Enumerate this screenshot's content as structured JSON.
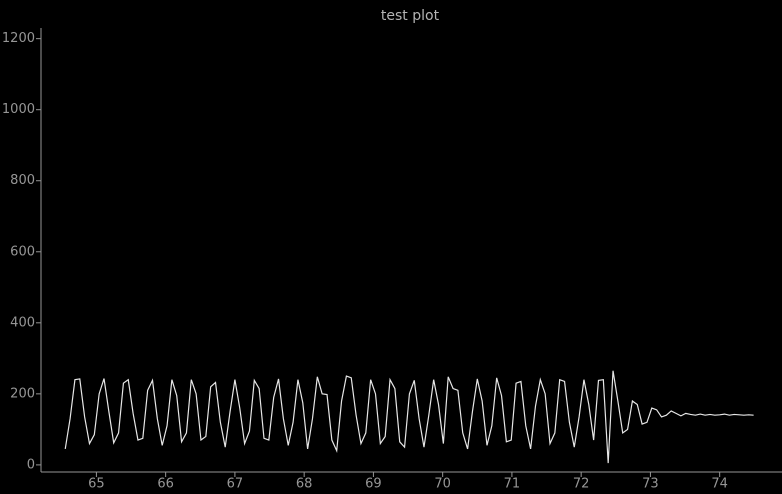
{
  "chart_data": {
    "type": "line",
    "title": "test plot",
    "x": [
      64.55,
      64.62,
      64.69,
      64.76,
      64.83,
      64.9,
      64.97,
      65.04,
      65.11,
      65.18,
      65.25,
      65.32,
      65.39,
      65.46,
      65.53,
      65.6,
      65.67,
      65.74,
      65.81,
      65.88,
      65.95,
      66.02,
      66.09,
      66.16,
      66.23,
      66.3,
      66.37,
      66.44,
      66.51,
      66.58,
      66.65,
      66.72,
      66.79,
      66.86,
      66.93,
      67.0,
      67.07,
      67.14,
      67.21,
      67.28,
      67.35,
      67.42,
      67.49,
      67.56,
      67.63,
      67.7,
      67.77,
      67.84,
      67.91,
      67.98,
      68.05,
      68.12,
      68.19,
      68.26,
      68.33,
      68.4,
      68.47,
      68.54,
      68.61,
      68.68,
      68.75,
      68.82,
      68.89,
      68.96,
      69.03,
      69.1,
      69.17,
      69.24,
      69.31,
      69.38,
      69.45,
      69.52,
      69.59,
      69.66,
      69.73,
      69.8,
      69.87,
      69.94,
      70.01,
      70.08,
      70.15,
      70.22,
      70.29,
      70.36,
      70.43,
      70.5,
      70.57,
      70.64,
      70.71,
      70.78,
      70.85,
      70.92,
      70.99,
      71.06,
      71.13,
      71.2,
      71.27,
      71.34,
      71.41,
      71.48,
      71.55,
      71.62,
      71.69,
      71.76,
      71.83,
      71.9,
      71.97,
      72.04,
      72.11,
      72.18,
      72.25,
      72.32,
      72.39,
      72.46,
      72.53,
      72.6,
      72.67,
      72.74,
      72.81,
      72.88,
      72.95,
      73.02,
      73.09,
      73.16,
      73.23,
      73.3,
      73.37,
      73.44,
      73.51,
      73.58,
      73.65,
      73.72,
      73.79,
      73.86,
      73.93,
      74.0,
      74.07,
      74.14,
      74.21,
      74.28,
      74.35,
      74.42,
      74.49
    ],
    "values": [
      45,
      130,
      240,
      242,
      135,
      60,
      85,
      200,
      243,
      150,
      62,
      90,
      230,
      240,
      145,
      70,
      75,
      210,
      238,
      130,
      55,
      110,
      240,
      195,
      65,
      90,
      240,
      200,
      70,
      80,
      220,
      232,
      120,
      50,
      150,
      240,
      160,
      60,
      95,
      238,
      215,
      75,
      70,
      190,
      242,
      130,
      55,
      120,
      240,
      175,
      45,
      130,
      248,
      200,
      198,
      70,
      40,
      180,
      250,
      245,
      140,
      60,
      90,
      240,
      200,
      60,
      80,
      240,
      215,
      65,
      50,
      200,
      238,
      130,
      50,
      140,
      240,
      170,
      60,
      248,
      215,
      210,
      90,
      45,
      150,
      242,
      180,
      55,
      110,
      245,
      195,
      65,
      70,
      230,
      235,
      110,
      45,
      165,
      240,
      200,
      60,
      90,
      240,
      235,
      120,
      50,
      135,
      240,
      170,
      70,
      238,
      240,
      5,
      265,
      180,
      90,
      100,
      180,
      170,
      115,
      120,
      160,
      155,
      135,
      140,
      152,
      145,
      138,
      145,
      142,
      140,
      143,
      140,
      142,
      140,
      141,
      143,
      140,
      142,
      141,
      140,
      141,
      140
    ],
    "color": "#e6e6e6",
    "xlim": [
      64.2,
      74.9
    ],
    "ylim": [
      -20,
      1230
    ],
    "xticks": [
      65,
      66,
      67,
      68,
      69,
      70,
      71,
      72,
      73,
      74
    ],
    "yticks": [
      0,
      200,
      400,
      600,
      800,
      1000,
      1200
    ]
  }
}
